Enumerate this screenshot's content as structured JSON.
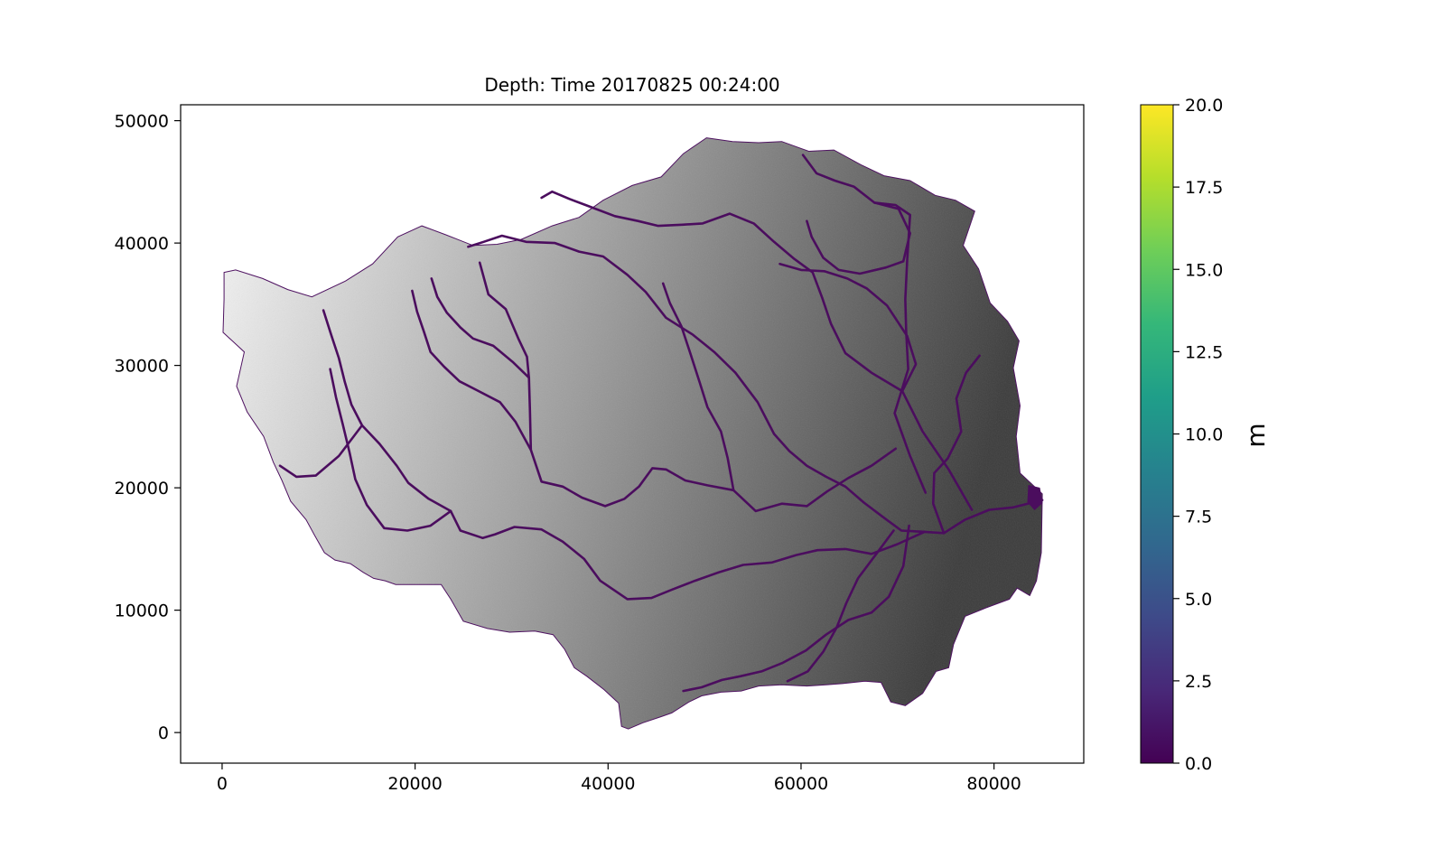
{
  "chart_data": {
    "type": "heatmap",
    "title": "Depth: Time 20170825 00:24:00",
    "xlabel": "",
    "ylabel": "",
    "xlim": [
      -4300,
      89300
    ],
    "ylim": [
      -2500,
      51300
    ],
    "x_ticks": [
      0,
      20000,
      40000,
      60000,
      80000
    ],
    "x_tick_labels": [
      "0",
      "20000",
      "40000",
      "60000",
      "80000"
    ],
    "y_ticks": [
      0,
      10000,
      20000,
      30000,
      40000,
      50000
    ],
    "y_tick_labels": [
      "0",
      "10000",
      "20000",
      "30000",
      "40000",
      "50000"
    ],
    "grid": false,
    "colorbar": {
      "label": "m",
      "colormap": "viridis",
      "range": [
        0,
        20
      ],
      "ticks": [
        0,
        2.5,
        5,
        7.5,
        10,
        12.5,
        15,
        17.5,
        20
      ],
      "tick_labels": [
        "0.0",
        "2.5",
        "5.0",
        "7.5",
        "10.0",
        "12.5",
        "15.0",
        "17.5",
        "20.0"
      ],
      "stops": [
        "#440154",
        "#482878",
        "#3e4a89",
        "#31688e",
        "#26828e",
        "#1f9e89",
        "#35b779",
        "#6ece58",
        "#b5de2b",
        "#fde725"
      ]
    },
    "depth_color": "#4b0d5e",
    "terrain_shade": {
      "west": "#f7f7f7",
      "center": "#9c9c9c",
      "east": "#3c3c3c"
    },
    "basin_outline": [
      [
        200,
        37600
      ],
      [
        1400,
        37800
      ],
      [
        4200,
        37100
      ],
      [
        6800,
        36200
      ],
      [
        9300,
        35600
      ],
      [
        12800,
        36900
      ],
      [
        15600,
        38300
      ],
      [
        18200,
        40500
      ],
      [
        20700,
        41400
      ],
      [
        23100,
        40700
      ],
      [
        26000,
        39800
      ],
      [
        28500,
        39900
      ],
      [
        31000,
        40300
      ],
      [
        34200,
        41400
      ],
      [
        37000,
        42100
      ],
      [
        39500,
        43500
      ],
      [
        42500,
        44700
      ],
      [
        45500,
        45400
      ],
      [
        47800,
        47300
      ],
      [
        50200,
        48600
      ],
      [
        52900,
        48300
      ],
      [
        55600,
        48200
      ],
      [
        58000,
        48300
      ],
      [
        60800,
        47500
      ],
      [
        63400,
        47600
      ],
      [
        66200,
        46400
      ],
      [
        68600,
        45500
      ],
      [
        71300,
        45100
      ],
      [
        73900,
        43900
      ],
      [
        76000,
        43500
      ],
      [
        78000,
        42600
      ],
      [
        76800,
        39800
      ],
      [
        78400,
        37900
      ],
      [
        79600,
        35100
      ],
      [
        81400,
        33600
      ],
      [
        82600,
        32000
      ],
      [
        82000,
        29800
      ],
      [
        82700,
        26700
      ],
      [
        82300,
        24200
      ],
      [
        82700,
        21200
      ],
      [
        85000,
        19500
      ],
      [
        84900,
        14700
      ],
      [
        84400,
        12400
      ],
      [
        83700,
        11200
      ],
      [
        82400,
        11800
      ],
      [
        81600,
        10900
      ],
      [
        79200,
        10200
      ],
      [
        77000,
        9500
      ],
      [
        75800,
        7200
      ],
      [
        75300,
        5300
      ],
      [
        74000,
        5000
      ],
      [
        72600,
        3200
      ],
      [
        70800,
        2200
      ],
      [
        69300,
        2500
      ],
      [
        68300,
        4100
      ],
      [
        66600,
        4200
      ],
      [
        64300,
        4000
      ],
      [
        62600,
        3900
      ],
      [
        60600,
        3800
      ],
      [
        58000,
        3900
      ],
      [
        55600,
        3800
      ],
      [
        53800,
        3400
      ],
      [
        51700,
        3300
      ],
      [
        49700,
        3000
      ],
      [
        48400,
        2500
      ],
      [
        46600,
        1600
      ],
      [
        45500,
        1300
      ],
      [
        43600,
        800
      ],
      [
        42100,
        300
      ],
      [
        41400,
        500
      ],
      [
        41100,
        2400
      ],
      [
        39600,
        3500
      ],
      [
        37800,
        4600
      ],
      [
        36500,
        5300
      ],
      [
        35500,
        6800
      ],
      [
        34300,
        8000
      ],
      [
        32400,
        8300
      ],
      [
        29800,
        8200
      ],
      [
        27500,
        8500
      ],
      [
        25000,
        9100
      ],
      [
        23700,
        10900
      ],
      [
        22700,
        12100
      ],
      [
        20300,
        12100
      ],
      [
        18000,
        12100
      ],
      [
        16900,
        12400
      ],
      [
        15700,
        12600
      ],
      [
        14600,
        13100
      ],
      [
        13300,
        13800
      ],
      [
        11700,
        14100
      ],
      [
        10600,
        14700
      ],
      [
        9600,
        16100
      ],
      [
        8700,
        17400
      ],
      [
        7100,
        18900
      ],
      [
        6200,
        20600
      ],
      [
        5300,
        22100
      ],
      [
        4300,
        24200
      ],
      [
        2600,
        26200
      ],
      [
        1500,
        28300
      ],
      [
        2300,
        31100
      ],
      [
        100,
        32700
      ],
      [
        200,
        35400
      ]
    ],
    "channels": [
      [
        [
          69800,
          23200
        ],
        [
          67300,
          21800
        ],
        [
          64900,
          20800
        ],
        [
          62700,
          19700
        ],
        [
          60600,
          18500
        ],
        [
          58000,
          18700
        ],
        [
          55300,
          18100
        ],
        [
          53000,
          19800
        ],
        [
          50300,
          20200
        ],
        [
          48000,
          20600
        ],
        [
          46000,
          21500
        ],
        [
          44600,
          21600
        ],
        [
          43200,
          20100
        ],
        [
          41700,
          19100
        ],
        [
          39700,
          18500
        ],
        [
          37300,
          19200
        ],
        [
          35300,
          20100
        ],
        [
          33100,
          20500
        ],
        [
          32000,
          23100
        ],
        [
          31900,
          26300
        ],
        [
          31800,
          29000
        ],
        [
          31600,
          30700
        ],
        [
          30700,
          32200
        ],
        [
          29400,
          34600
        ],
        [
          27600,
          35800
        ],
        [
          26700,
          38400
        ]
      ],
      [
        [
          85000,
          19000
        ],
        [
          82000,
          18400
        ],
        [
          79500,
          18200
        ],
        [
          77000,
          17400
        ],
        [
          74800,
          16300
        ],
        [
          72800,
          16400
        ],
        [
          70400,
          16500
        ],
        [
          68500,
          17600
        ],
        [
          66500,
          18800
        ],
        [
          64600,
          20100
        ],
        [
          62600,
          20900
        ],
        [
          60600,
          21800
        ],
        [
          58800,
          23000
        ],
        [
          57200,
          24400
        ],
        [
          55500,
          27000
        ],
        [
          53200,
          29400
        ],
        [
          51000,
          31100
        ],
        [
          48800,
          32500
        ],
        [
          46000,
          33900
        ],
        [
          43900,
          36000
        ],
        [
          42000,
          37400
        ],
        [
          39500,
          38900
        ],
        [
          37000,
          39300
        ],
        [
          34500,
          40000
        ],
        [
          31500,
          40100
        ],
        [
          29000,
          40600
        ],
        [
          27100,
          40100
        ],
        [
          25500,
          39700
        ]
      ],
      [
        [
          72800,
          16400
        ],
        [
          70000,
          15400
        ],
        [
          67300,
          14600
        ],
        [
          64600,
          15000
        ],
        [
          61700,
          14900
        ],
        [
          59500,
          14500
        ],
        [
          57000,
          13900
        ],
        [
          54000,
          13700
        ],
        [
          51500,
          13100
        ],
        [
          49000,
          12400
        ],
        [
          46700,
          11700
        ],
        [
          44500,
          11000
        ],
        [
          42000,
          10900
        ],
        [
          39200,
          12400
        ],
        [
          37500,
          14200
        ],
        [
          35300,
          15600
        ],
        [
          33100,
          16600
        ],
        [
          30300,
          16800
        ],
        [
          28300,
          16200
        ],
        [
          27000,
          15900
        ]
      ],
      [
        [
          77700,
          18200
        ],
        [
          75300,
          21500
        ],
        [
          72600,
          24600
        ],
        [
          70500,
          27900
        ],
        [
          67300,
          29400
        ],
        [
          64600,
          31000
        ],
        [
          63100,
          33400
        ],
        [
          62200,
          35500
        ],
        [
          61200,
          37600
        ],
        [
          59300,
          38700
        ],
        [
          57200,
          40100
        ],
        [
          55100,
          41600
        ],
        [
          52600,
          42400
        ],
        [
          49800,
          41600
        ],
        [
          47700,
          41500
        ],
        [
          45200,
          41400
        ],
        [
          43100,
          41800
        ],
        [
          40700,
          42200
        ],
        [
          37700,
          43100
        ],
        [
          36000,
          43600
        ],
        [
          34200,
          44200
        ],
        [
          33100,
          43700
        ]
      ],
      [
        [
          72900,
          19600
        ],
        [
          71300,
          22600
        ],
        [
          69700,
          26100
        ],
        [
          71100,
          29700
        ],
        [
          70900,
          32700
        ],
        [
          70800,
          35400
        ],
        [
          71000,
          38600
        ],
        [
          71300,
          42300
        ],
        [
          69800,
          43100
        ],
        [
          67600,
          43300
        ],
        [
          65500,
          44600
        ],
        [
          63500,
          45100
        ],
        [
          61600,
          45700
        ],
        [
          60200,
          47200
        ]
      ],
      [
        [
          71200,
          16900
        ],
        [
          70600,
          13600
        ],
        [
          69100,
          11100
        ],
        [
          67300,
          9800
        ],
        [
          64900,
          9200
        ],
        [
          62600,
          8000
        ],
        [
          60500,
          6700
        ],
        [
          58100,
          5700
        ],
        [
          55900,
          5000
        ],
        [
          53700,
          4600
        ],
        [
          51800,
          4300
        ],
        [
          49700,
          3700
        ],
        [
          47800,
          3400
        ]
      ],
      [
        [
          69600,
          16500
        ],
        [
          67800,
          14600
        ],
        [
          65900,
          12600
        ],
        [
          64700,
          10600
        ],
        [
          63700,
          8600
        ],
        [
          62300,
          6600
        ],
        [
          60700,
          5000
        ],
        [
          58600,
          4200
        ]
      ],
      [
        [
          74800,
          16300
        ],
        [
          73700,
          18700
        ],
        [
          73800,
          21200
        ],
        [
          75200,
          22400
        ],
        [
          76600,
          24600
        ],
        [
          76100,
          27300
        ],
        [
          77100,
          29400
        ],
        [
          78500,
          30800
        ]
      ],
      [
        [
          70500,
          27900
        ],
        [
          71900,
          30100
        ],
        [
          71000,
          32400
        ],
        [
          68900,
          34900
        ],
        [
          66800,
          36300
        ],
        [
          64800,
          37100
        ],
        [
          62400,
          37700
        ],
        [
          60000,
          37800
        ],
        [
          57800,
          38300
        ]
      ],
      [
        [
          67600,
          43300
        ],
        [
          70100,
          42800
        ],
        [
          71300,
          40800
        ],
        [
          70600,
          38500
        ],
        [
          68800,
          38000
        ],
        [
          66100,
          37500
        ],
        [
          63900,
          37800
        ],
        [
          62300,
          38800
        ],
        [
          61100,
          40500
        ],
        [
          60600,
          41800
        ]
      ],
      [
        [
          27000,
          15900
        ],
        [
          24700,
          16500
        ],
        [
          23700,
          18100
        ],
        [
          21400,
          19100
        ],
        [
          19300,
          20400
        ],
        [
          18100,
          21800
        ],
        [
          16300,
          23600
        ],
        [
          14500,
          25100
        ],
        [
          13400,
          26800
        ],
        [
          12700,
          28700
        ],
        [
          12100,
          30600
        ],
        [
          11300,
          32500
        ],
        [
          10500,
          34500
        ]
      ],
      [
        [
          32000,
          23100
        ],
        [
          30400,
          25400
        ],
        [
          28800,
          27000
        ],
        [
          26600,
          27900
        ],
        [
          24600,
          28700
        ],
        [
          23000,
          29900
        ],
        [
          21600,
          31100
        ],
        [
          20900,
          32800
        ],
        [
          20200,
          34400
        ],
        [
          19700,
          36100
        ]
      ],
      [
        [
          31800,
          29000
        ],
        [
          30100,
          30300
        ],
        [
          28100,
          31600
        ],
        [
          26000,
          32200
        ],
        [
          24700,
          33100
        ],
        [
          23300,
          34300
        ],
        [
          22300,
          35600
        ],
        [
          21700,
          37100
        ]
      ],
      [
        [
          23700,
          18100
        ],
        [
          21600,
          16900
        ],
        [
          19200,
          16500
        ],
        [
          16800,
          16700
        ],
        [
          15000,
          18600
        ],
        [
          13800,
          20700
        ],
        [
          13200,
          22900
        ],
        [
          12500,
          25200
        ],
        [
          11800,
          27400
        ],
        [
          11200,
          29700
        ]
      ],
      [
        [
          14500,
          25100
        ],
        [
          12100,
          22600
        ],
        [
          9700,
          21000
        ],
        [
          7700,
          20900
        ],
        [
          6000,
          21800
        ]
      ],
      [
        [
          53000,
          19800
        ],
        [
          52400,
          22400
        ],
        [
          51700,
          24600
        ],
        [
          50300,
          26600
        ],
        [
          49500,
          28600
        ],
        [
          48600,
          30800
        ],
        [
          47600,
          33200
        ],
        [
          46400,
          35100
        ],
        [
          45700,
          36700
        ]
      ]
    ],
    "flooded_outlet_center": [
      84200,
      19200
    ]
  }
}
